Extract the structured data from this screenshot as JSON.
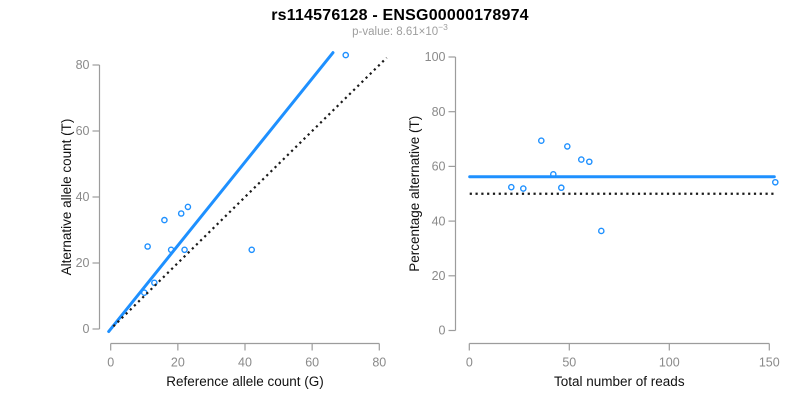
{
  "header": {
    "title": "rs114576128 - ENSG00000178974",
    "pvalue_label": "p-value: 8.61×10",
    "pvalue_exponent": "−3"
  },
  "palette": {
    "point_blue": "#1E90FF",
    "line_blue": "#1E90FF",
    "identity_black": "#1a1a1a",
    "axis_gray": "#9c9c9c",
    "tick_label_gray": "#8a8a8a",
    "axis_title_black": "#111111",
    "title_black": "#000000",
    "subtitle_gray": "#9e9e9e",
    "background": "#ffffff"
  },
  "chart_data": [
    {
      "type": "scatter",
      "panel": "allele-counts",
      "title": "",
      "xlabel": "Reference allele count (G)",
      "ylabel": "Alternative allele count (T)",
      "xlim": [
        0,
        80
      ],
      "ylim": [
        0,
        83
      ],
      "xticks": [
        0,
        20,
        40,
        60,
        80
      ],
      "yticks": [
        0,
        20,
        40,
        60,
        80
      ],
      "grid": false,
      "legend": "none",
      "marker": "open-circle",
      "points": [
        [
          10,
          11
        ],
        [
          13,
          14
        ],
        [
          11,
          25
        ],
        [
          16,
          33
        ],
        [
          18,
          24
        ],
        [
          21,
          35
        ],
        [
          22,
          24
        ],
        [
          23,
          37
        ],
        [
          42,
          24
        ],
        [
          70,
          83
        ]
      ],
      "lines": [
        {
          "name": "fit-line",
          "kind": "slope",
          "slope": 1.265,
          "intercept": 0,
          "style": "solid",
          "color_key": "line_blue"
        },
        {
          "name": "identity-line",
          "kind": "slope",
          "slope": 1,
          "intercept": 0,
          "style": "dotted",
          "color_key": "identity_black"
        }
      ]
    },
    {
      "type": "scatter",
      "panel": "percentage-vs-coverage",
      "title": "",
      "xlabel": "Total number of reads",
      "ylabel": "Percentage alternative (T)",
      "xlim": [
        0,
        153
      ],
      "ylim": [
        0,
        100
      ],
      "xticks": [
        0,
        50,
        100,
        150
      ],
      "yticks": [
        0,
        20,
        40,
        60,
        80,
        100
      ],
      "grid": false,
      "legend": "none",
      "marker": "open-circle",
      "points": [
        [
          21,
          52.4
        ],
        [
          27,
          51.9
        ],
        [
          36,
          69.4
        ],
        [
          42,
          57.1
        ],
        [
          46,
          52.2
        ],
        [
          49,
          67.3
        ],
        [
          56,
          62.5
        ],
        [
          60,
          61.7
        ],
        [
          66,
          36.4
        ],
        [
          153,
          54.2
        ]
      ],
      "lines": [
        {
          "name": "fit-line",
          "kind": "horizontal",
          "y": 56.2,
          "style": "solid",
          "color_key": "line_blue"
        },
        {
          "name": "null-line",
          "kind": "horizontal",
          "y": 50,
          "style": "dotted",
          "color_key": "identity_black"
        }
      ]
    }
  ]
}
